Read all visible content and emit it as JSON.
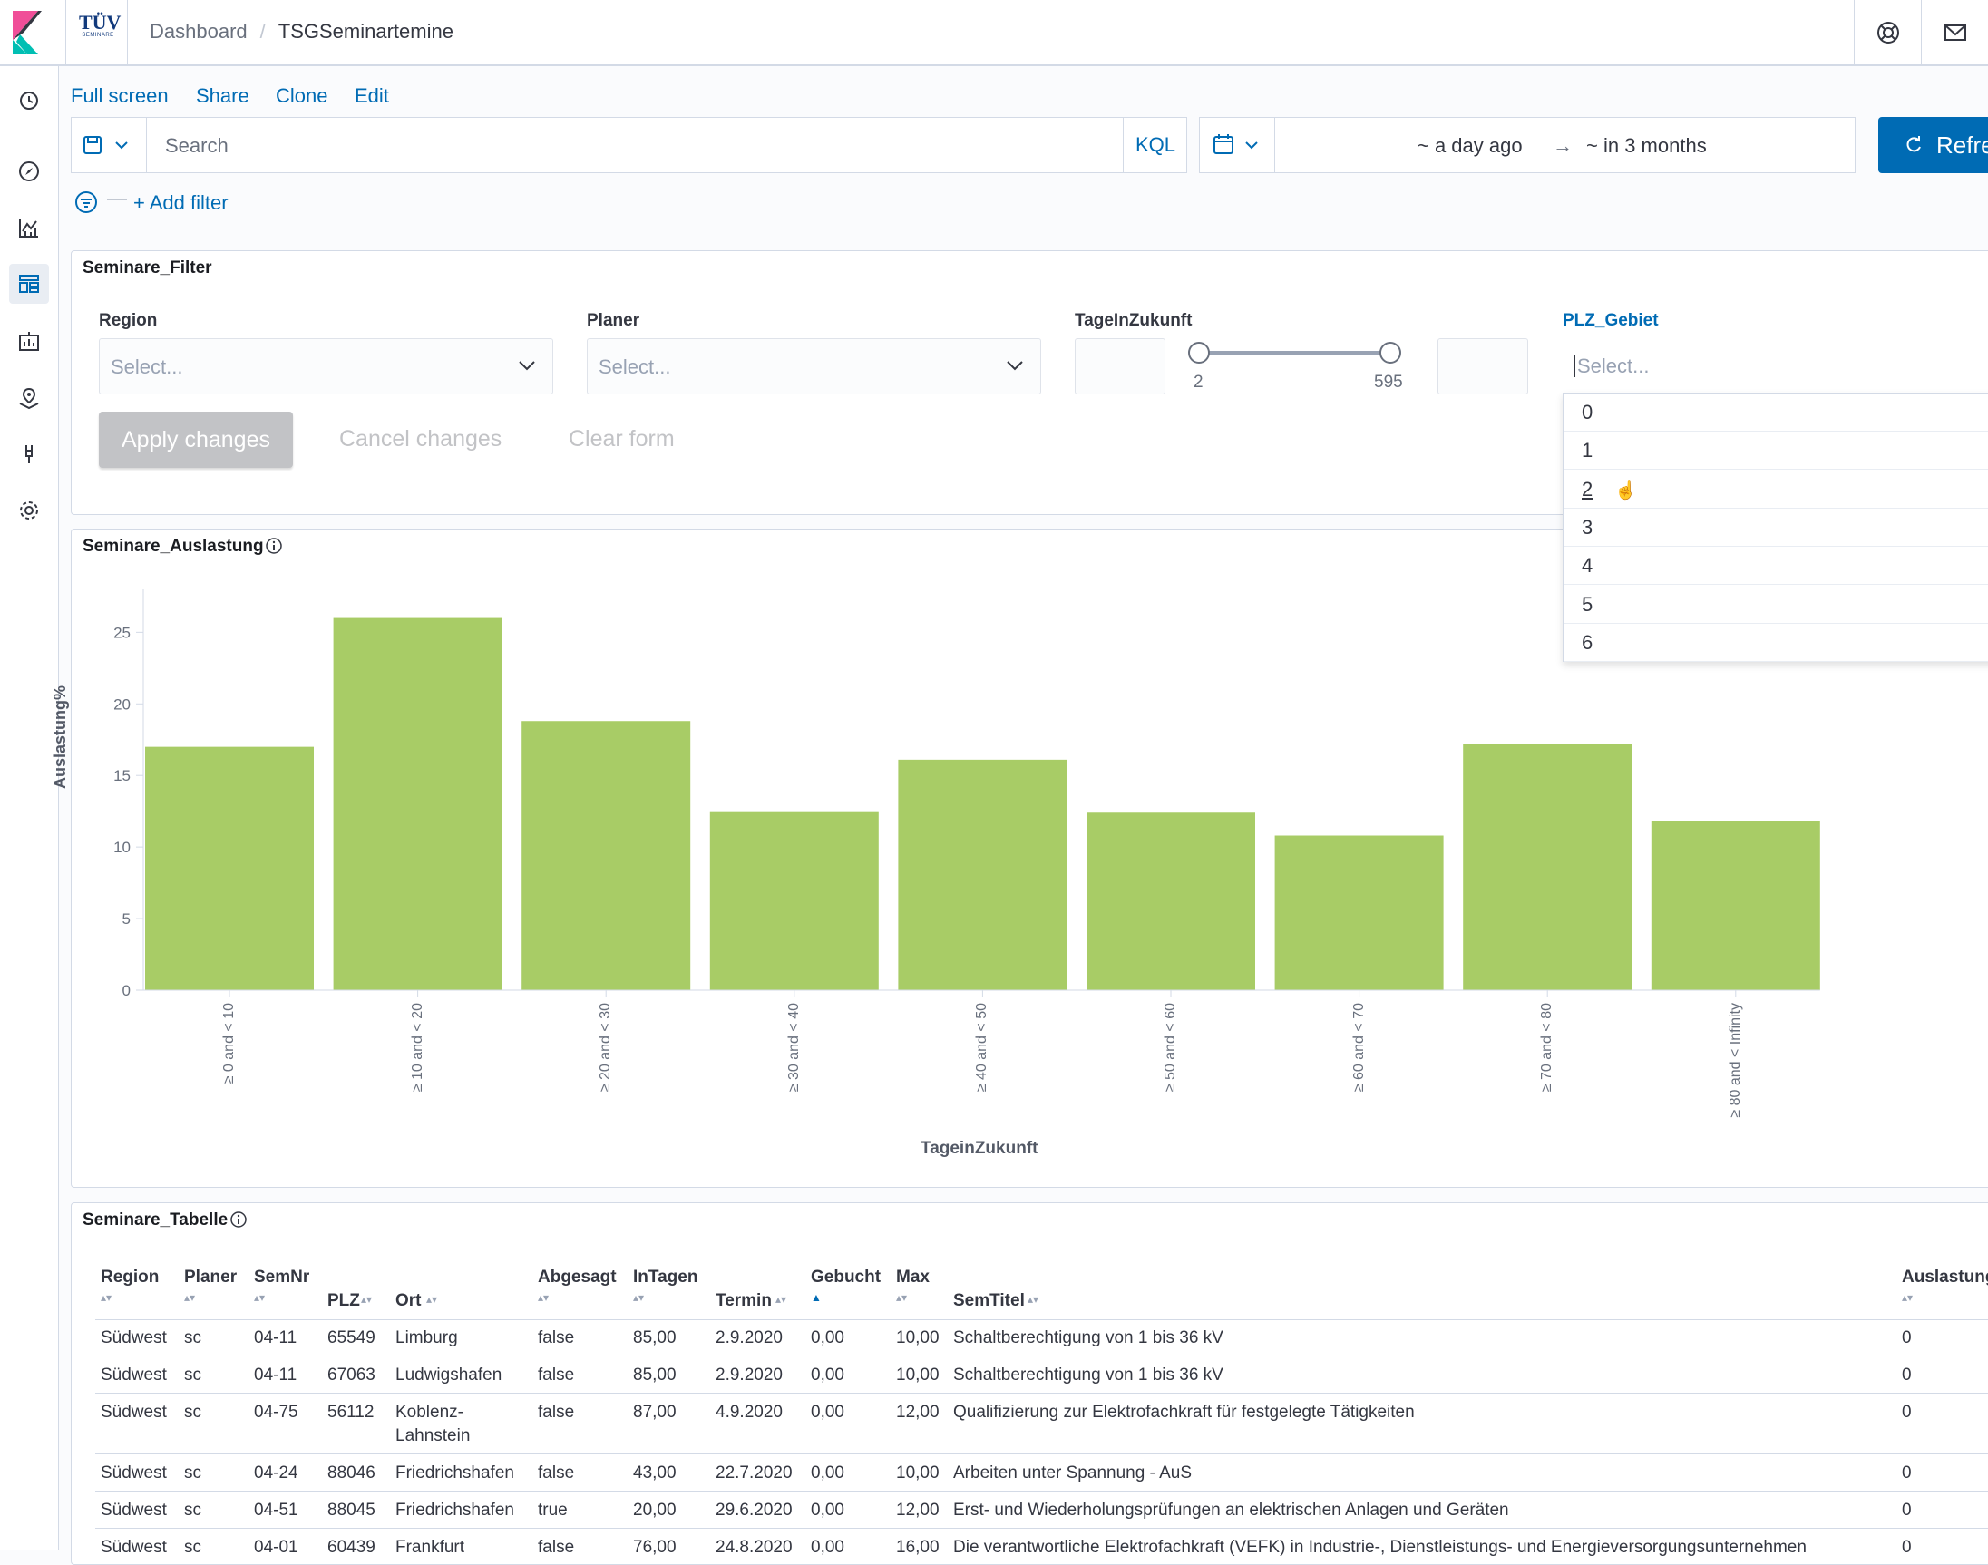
{
  "header": {
    "breadcrumb_dashboard": "Dashboard",
    "breadcrumb_sep": "/",
    "breadcrumb_current": "TSGSeminartemine",
    "brand_logo_text": "TÜV",
    "brand_logo_sub": "SEMINARE"
  },
  "actions": {
    "fullscreen": "Full screen",
    "share": "Share",
    "clone": "Clone",
    "edit": "Edit"
  },
  "query": {
    "search_placeholder": "Search",
    "language": "KQL",
    "time_start": "~ a day ago",
    "time_arrow": "→",
    "time_end": "~ in 3 months",
    "refresh_label": "Refre",
    "add_filter": "+ Add filter",
    "filter_dash": "—"
  },
  "filter_panel": {
    "title": "Seminare_Filter",
    "region_label": "Region",
    "region_placeholder": "Select...",
    "planer_label": "Planer",
    "planer_placeholder": "Select...",
    "tage_label": "TageInZukunft",
    "range_min": "2",
    "range_max": "595",
    "plz_label": "PLZ_Gebiet",
    "plz_placeholder": "Select...",
    "apply": "Apply changes",
    "cancel": "Cancel changes",
    "clear": "Clear form",
    "plz_options": [
      "0",
      "1",
      "2",
      "3",
      "4",
      "5",
      "6"
    ]
  },
  "chart_panel": {
    "title": "Seminare_Auslastung"
  },
  "chart_data": {
    "type": "bar",
    "categories": [
      "≥ 0 and < 10",
      "≥ 10 and < 20",
      "≥ 20 and < 30",
      "≥ 30 and < 40",
      "≥ 40 and < 50",
      "≥ 50 and < 60",
      "≥ 60 and < 70",
      "≥ 70 and < 80",
      "≥ 80 and < Infinity"
    ],
    "values": [
      17,
      26,
      18.8,
      12.5,
      16.1,
      12.4,
      10.8,
      17.2,
      11.8
    ],
    "xlabel": "TageinZukunft",
    "ylabel": "Auslastung%",
    "ylim": [
      0,
      28
    ],
    "yticks": [
      0,
      5,
      10,
      15,
      20,
      25
    ],
    "bar_color": "#a8cc66",
    "grid": false
  },
  "table_panel": {
    "title": "Seminare_Tabelle",
    "headers": {
      "region": "Region",
      "planer": "Planer",
      "semnr": "SemNr",
      "plz": "PLZ",
      "ort": "Ort",
      "abgesagt": "Abgesagt",
      "intagen": "InTagen",
      "termin": "Termin",
      "gebucht": "Gebucht",
      "max": "Max",
      "semtitel": "SemTitel",
      "auslastung": "Auslastung"
    },
    "rows": [
      {
        "region": "Südwest",
        "planer": "sc",
        "semnr": "04-11",
        "plz": "65549",
        "ort": "Limburg",
        "abgesagt": "false",
        "intagen": "85,00",
        "termin": "2.9.2020",
        "gebucht": "0,00",
        "max": "10,00",
        "semtitel": "Schaltberechtigung von 1 bis 36 kV",
        "auslastung": "0"
      },
      {
        "region": "Südwest",
        "planer": "sc",
        "semnr": "04-11",
        "plz": "67063",
        "ort": "Ludwigshafen",
        "abgesagt": "false",
        "intagen": "85,00",
        "termin": "2.9.2020",
        "gebucht": "0,00",
        "max": "10,00",
        "semtitel": "Schaltberechtigung von 1 bis 36 kV",
        "auslastung": "0"
      },
      {
        "region": "Südwest",
        "planer": "sc",
        "semnr": "04-75",
        "plz": "56112",
        "ort": "Koblenz-\nLahnstein",
        "abgesagt": "false",
        "intagen": "87,00",
        "termin": "4.9.2020",
        "gebucht": "0,00",
        "max": "12,00",
        "semtitel": "Qualifizierung zur Elektrofachkraft für festgelegte Tätigkeiten",
        "auslastung": "0"
      },
      {
        "region": "Südwest",
        "planer": "sc",
        "semnr": "04-24",
        "plz": "88046",
        "ort": "Friedrichshafen",
        "abgesagt": "false",
        "intagen": "43,00",
        "termin": "22.7.2020",
        "gebucht": "0,00",
        "max": "10,00",
        "semtitel": "Arbeiten unter Spannung - AuS",
        "auslastung": "0"
      },
      {
        "region": "Südwest",
        "planer": "sc",
        "semnr": "04-51",
        "plz": "88045",
        "ort": "Friedrichshafen",
        "abgesagt": "true",
        "intagen": "20,00",
        "termin": "29.6.2020",
        "gebucht": "0,00",
        "max": "12,00",
        "semtitel": "Erst- und Wiederholungsprüfungen an elektrischen Anlagen und Geräten",
        "auslastung": "0"
      },
      {
        "region": "Südwest",
        "planer": "sc",
        "semnr": "04-01",
        "plz": "60439",
        "ort": "Frankfurt",
        "abgesagt": "false",
        "intagen": "76,00",
        "termin": "24.8.2020",
        "gebucht": "0,00",
        "max": "16,00",
        "semtitel": "Die verantwortliche Elektrofachkraft (VEFK) in Industrie-, Dienstleistungs- und Energieversorgungsunternehmen",
        "auslastung": "0"
      }
    ]
  }
}
